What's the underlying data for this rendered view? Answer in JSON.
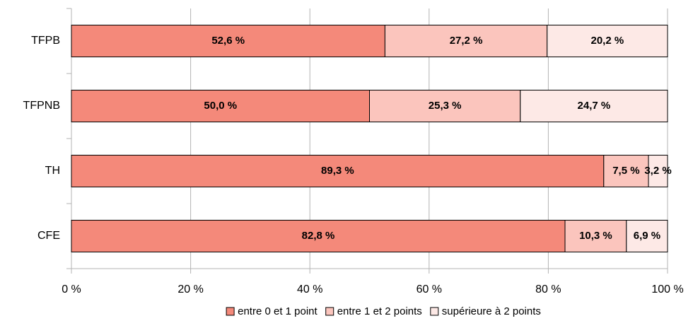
{
  "chart_data": {
    "type": "stacked-bar-horizontal",
    "categories": [
      "TFPB",
      "TFPNB",
      "TH",
      "CFE"
    ],
    "series": [
      {
        "name": "entre 0 et 1 point",
        "color": "#f4897a",
        "values": [
          52.6,
          50.0,
          89.3,
          82.8
        ],
        "value_labels": [
          "52,6 %",
          "50,0 %",
          "89,3 %",
          "82,8 %"
        ]
      },
      {
        "name": "entre 1 et 2 points",
        "color": "#fbc5bd",
        "values": [
          27.2,
          25.3,
          7.5,
          10.3
        ],
        "value_labels": [
          "27,2 %",
          "25,3 %",
          "7,5 %",
          "10,3 %"
        ]
      },
      {
        "name": "supérieure à 2 points",
        "color": "#fde9e6",
        "values": [
          20.2,
          24.7,
          3.2,
          6.9
        ],
        "value_labels": [
          "20,2 %",
          "24,7 %",
          "3,2 %",
          "6,9 %"
        ]
      }
    ],
    "xlim": [
      0,
      100
    ],
    "xticks": [
      {
        "value": 0,
        "label": "0 %"
      },
      {
        "value": 20,
        "label": "20 %"
      },
      {
        "value": 40,
        "label": "40 %"
      },
      {
        "value": 60,
        "label": "60 %"
      },
      {
        "value": 80,
        "label": "80 %"
      },
      {
        "value": 100,
        "label": "100 %"
      }
    ],
    "grid": true,
    "legend": "bottom"
  }
}
